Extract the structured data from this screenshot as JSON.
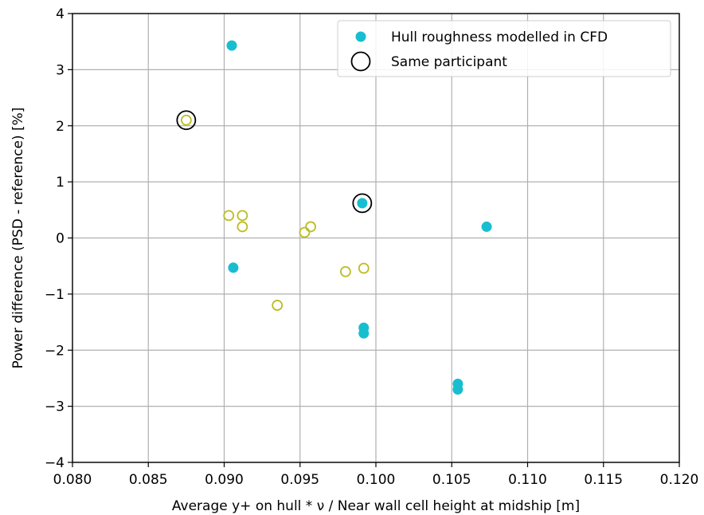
{
  "chart_data": {
    "type": "scatter",
    "title": "",
    "xlabel": "Average y+ on hull * ν / Near wall cell height at midship [m]",
    "ylabel": "Power difference (PSD - reference) [%]",
    "xlim": [
      0.08,
      0.12
    ],
    "ylim": [
      -4,
      4
    ],
    "xticks": [
      "0.080",
      "0.085",
      "0.090",
      "0.095",
      "0.100",
      "0.105",
      "0.110",
      "0.115",
      "0.120"
    ],
    "yticks": [
      "−4",
      "−3",
      "−2",
      "−1",
      "0",
      "1",
      "2",
      "3",
      "4"
    ],
    "grid": true,
    "legend_position": "top-right",
    "series": [
      {
        "name": "Hull roughness modelled in CFD",
        "style": "filled",
        "color": "#17becf",
        "points": [
          {
            "x": 0.0905,
            "y": 3.43
          },
          {
            "x": 0.0906,
            "y": -0.53
          },
          {
            "x": 0.0991,
            "y": 0.62
          },
          {
            "x": 0.0992,
            "y": -1.6
          },
          {
            "x": 0.0992,
            "y": -1.7
          },
          {
            "x": 0.1054,
            "y": -2.6
          },
          {
            "x": 0.1054,
            "y": -2.7
          },
          {
            "x": 0.1073,
            "y": 0.2
          }
        ]
      },
      {
        "name": "",
        "style": "hollow",
        "color": "#bcbd22",
        "points": [
          {
            "x": 0.0875,
            "y": 2.1
          },
          {
            "x": 0.0903,
            "y": 0.4
          },
          {
            "x": 0.0912,
            "y": 0.4
          },
          {
            "x": 0.0912,
            "y": 0.2
          },
          {
            "x": 0.0935,
            "y": -1.2
          },
          {
            "x": 0.0953,
            "y": 0.1
          },
          {
            "x": 0.0957,
            "y": 0.2
          },
          {
            "x": 0.098,
            "y": -0.6
          },
          {
            "x": 0.0992,
            "y": -0.54
          }
        ]
      },
      {
        "name": "Same participant",
        "style": "ring",
        "color": "#000000",
        "points": [
          {
            "x": 0.0875,
            "y": 2.1
          },
          {
            "x": 0.0991,
            "y": 0.62
          }
        ]
      }
    ]
  }
}
